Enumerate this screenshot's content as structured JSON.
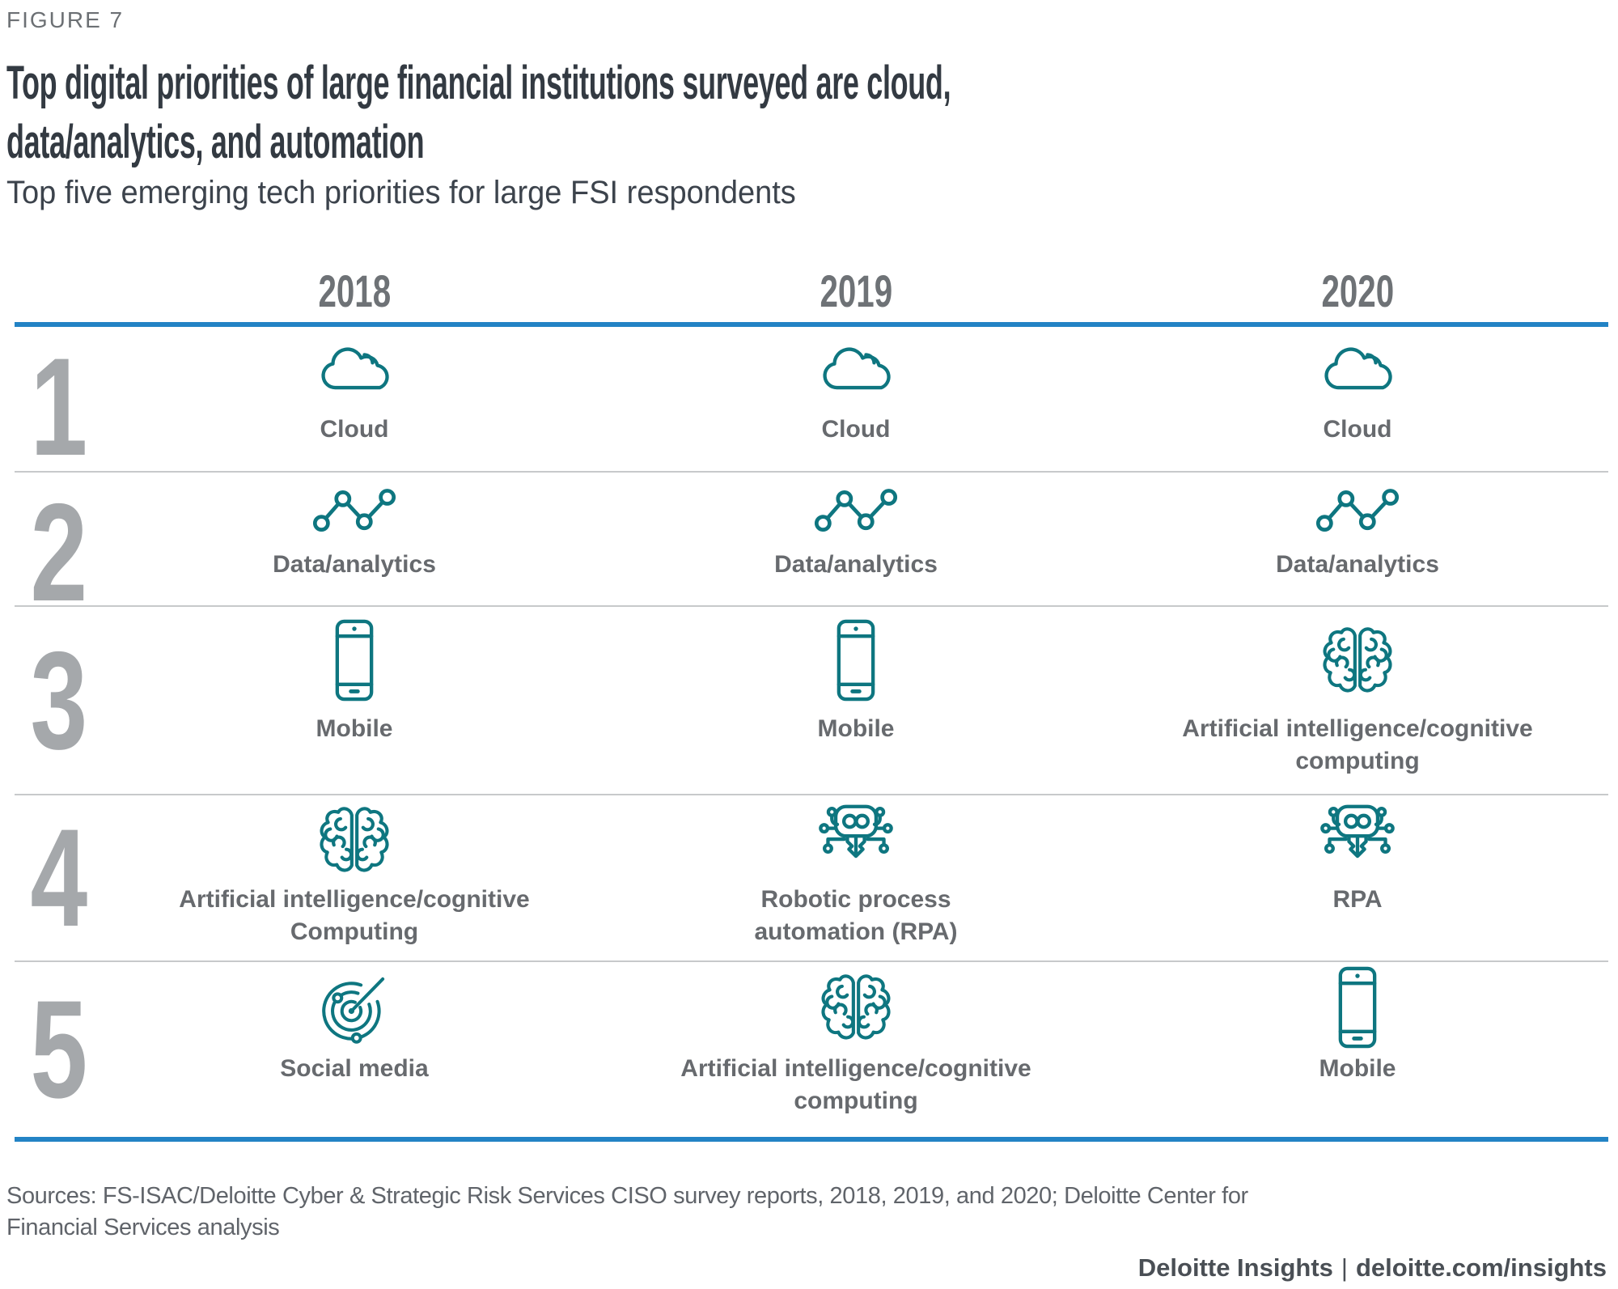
{
  "figure": {
    "label": "FIGURE 7",
    "title_lines": [
      "Top digital priorities of large financial institutions surveyed are cloud,",
      "data/analytics, and automation"
    ],
    "subtitle": "Top five emerging tech priorities for large FSI respondents"
  },
  "table": {
    "years": [
      "2018",
      "2019",
      "2020"
    ],
    "rows": [
      {
        "rank": "1",
        "cells": [
          {
            "icon": "cloud-icon",
            "label_lines": [
              "Cloud"
            ]
          },
          {
            "icon": "cloud-icon",
            "label_lines": [
              "Cloud"
            ]
          },
          {
            "icon": "cloud-icon",
            "label_lines": [
              "Cloud"
            ]
          }
        ]
      },
      {
        "rank": "2",
        "cells": [
          {
            "icon": "data-analytics-icon",
            "label_lines": [
              "Data/analytics"
            ]
          },
          {
            "icon": "data-analytics-icon",
            "label_lines": [
              "Data/analytics"
            ]
          },
          {
            "icon": "data-analytics-icon",
            "label_lines": [
              "Data/analytics"
            ]
          }
        ]
      },
      {
        "rank": "3",
        "cells": [
          {
            "icon": "mobile-icon",
            "label_lines": [
              "Mobile"
            ]
          },
          {
            "icon": "mobile-icon",
            "label_lines": [
              "Mobile"
            ]
          },
          {
            "icon": "brain-icon",
            "label_lines": [
              "Artificial intelligence/cognitive",
              "computing"
            ]
          }
        ]
      },
      {
        "rank": "4",
        "cells": [
          {
            "icon": "brain-icon",
            "label_lines": [
              "Artificial intelligence/cognitive",
              "Computing"
            ]
          },
          {
            "icon": "robot-icon",
            "label_lines": [
              "Robotic process",
              "automation (RPA)"
            ]
          },
          {
            "icon": "robot-icon",
            "label_lines": [
              "RPA"
            ]
          }
        ]
      },
      {
        "rank": "5",
        "cells": [
          {
            "icon": "social-media-icon",
            "label_lines": [
              "Social media"
            ]
          },
          {
            "icon": "brain-icon",
            "label_lines": [
              "Artificial intelligence/cognitive",
              "computing"
            ]
          },
          {
            "icon": "mobile-icon",
            "label_lines": [
              "Mobile"
            ]
          }
        ]
      }
    ]
  },
  "footer": {
    "sources": "Sources: FS-ISAC/Deloitte Cyber & Strategic Risk Services CISO survey reports, 2018, 2019, and 2020; Deloitte Center for Financial Services analysis",
    "brand": "Deloitte Insights",
    "separator": "|",
    "site": "deloitte.com/insights"
  },
  "colors": {
    "teal": "#0E7680",
    "accent_blue": "#2383C5",
    "title_dark": "#333A42",
    "label_gray": "#676A6E",
    "rank_gray": "#A5A8AB",
    "year_gray": "#6E7276",
    "source_gray": "#60646A",
    "separator_gray": "#C7C9CB"
  },
  "chart_data": {
    "type": "table",
    "title": "Top digital priorities of large financial institutions surveyed are cloud, data/analytics, and automation",
    "subtitle": "Top five emerging tech priorities for large FSI respondents",
    "columns": [
      "Rank",
      "2018",
      "2019",
      "2020"
    ],
    "rows": [
      [
        "1",
        "Cloud",
        "Cloud",
        "Cloud"
      ],
      [
        "2",
        "Data/analytics",
        "Data/analytics",
        "Data/analytics"
      ],
      [
        "3",
        "Mobile",
        "Mobile",
        "Artificial intelligence/cognitive computing"
      ],
      [
        "4",
        "Artificial intelligence/cognitive Computing",
        "Robotic process automation (RPA)",
        "RPA"
      ],
      [
        "5",
        "Social media",
        "Artificial intelligence/cognitive computing",
        "Mobile"
      ]
    ]
  }
}
